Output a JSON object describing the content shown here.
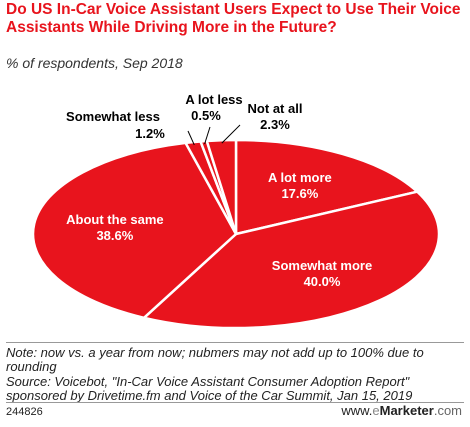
{
  "title": "Do US In-Car Voice Assistant Users Expect to Use Their Voice Assistants While Driving More in the Future?",
  "subtitle": "% of respondents, Sep 2018",
  "chart_data": {
    "type": "pie",
    "slices": [
      {
        "label": "A lot more",
        "value": 17.6,
        "value_label": "17.6%"
      },
      {
        "label": "Somewhat more",
        "value": 40.0,
        "value_label": "40.0%"
      },
      {
        "label": "About the same",
        "value": 38.6,
        "value_label": "38.6%"
      },
      {
        "label": "Somewhat less",
        "value": 1.2,
        "value_label": "1.2%"
      },
      {
        "label": "A lot less",
        "value": 0.5,
        "value_label": "0.5%"
      },
      {
        "label": "Not at all",
        "value": 2.3,
        "value_label": "2.3%"
      }
    ],
    "color": "#e8141d",
    "label_color_inside": "#ffffff"
  },
  "notes": {
    "note": "Note: now vs. a year from now; nubmers may not add up to 100% due to rounding",
    "source": "Source: Voicebot, \"In-Car Voice Assistant Consumer Adoption Report\" sponsored by Drivetime.fm and Voice of the Car Summit, Jan 15, 2019"
  },
  "footer": {
    "chart_id": "244826",
    "logo_prefix": "www.",
    "logo_e": "e",
    "logo_brand": "Marketer",
    "logo_tld": ".com"
  }
}
